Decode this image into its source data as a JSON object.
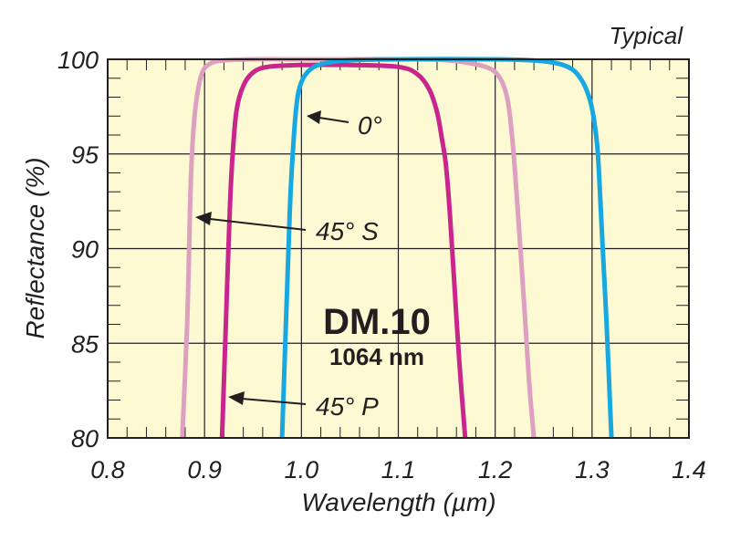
{
  "chart_data": {
    "type": "line",
    "title": "",
    "corner_label": "Typical",
    "xlabel": "Wavelength (µm)",
    "ylabel": "Reflectance (%)",
    "xlim": [
      0.8,
      1.4
    ],
    "ylim": [
      80,
      100
    ],
    "x_ticks": [
      "0.8",
      "0.9",
      "1.0",
      "1.1",
      "1.2",
      "1.3",
      "1.4"
    ],
    "y_ticks": [
      "100",
      "95",
      "90",
      "85",
      "80"
    ],
    "grid": true,
    "product_name": "DM.10",
    "product_wavelength": "1064 nm",
    "series": [
      {
        "name": "45° S",
        "color": "#dea0c0",
        "x": [
          0.877,
          0.882,
          0.885,
          0.887,
          0.891,
          0.897,
          0.905,
          0.92,
          0.95,
          1.0,
          1.05,
          1.1,
          1.15,
          1.19,
          1.205,
          1.213,
          1.218,
          1.222,
          1.226,
          1.23,
          1.235,
          1.24
        ],
        "y": [
          80,
          86,
          92,
          95,
          97.6,
          99.2,
          99.75,
          99.95,
          100,
          100,
          100,
          100,
          99.95,
          99.6,
          99.0,
          97.8,
          95.6,
          93.0,
          90,
          87,
          83,
          80
        ]
      },
      {
        "name": "45° P",
        "color": "#c8268c",
        "x": [
          0.918,
          0.922,
          0.926,
          0.929,
          0.933,
          0.94,
          0.95,
          0.965,
          1.0,
          1.05,
          1.1,
          1.12,
          1.132,
          1.14,
          1.145,
          1.149,
          1.153,
          1.158,
          1.163,
          1.169
        ],
        "y": [
          80,
          86,
          92,
          95,
          97.3,
          98.6,
          99.3,
          99.6,
          99.7,
          99.7,
          99.6,
          99.2,
          98.4,
          97.2,
          95.8,
          94.5,
          92,
          88,
          84,
          80
        ]
      },
      {
        "name": "0°",
        "color": "#18a8e0",
        "x": [
          0.98,
          0.984,
          0.988,
          0.991,
          0.995,
          1.0,
          1.01,
          1.025,
          1.05,
          1.1,
          1.2,
          1.25,
          1.275,
          1.288,
          1.297,
          1.302,
          1.306,
          1.31,
          1.315,
          1.32
        ],
        "y": [
          80,
          86,
          92,
          95,
          97.6,
          98.8,
          99.5,
          99.8,
          99.95,
          100,
          100,
          99.9,
          99.6,
          99,
          98,
          96.8,
          95,
          91,
          86,
          80
        ]
      }
    ],
    "annotations": [
      {
        "text": "0°",
        "series": "0°"
      },
      {
        "text": "45° S",
        "series": "45° S"
      },
      {
        "text": "45° P",
        "series": "45° P"
      }
    ]
  }
}
